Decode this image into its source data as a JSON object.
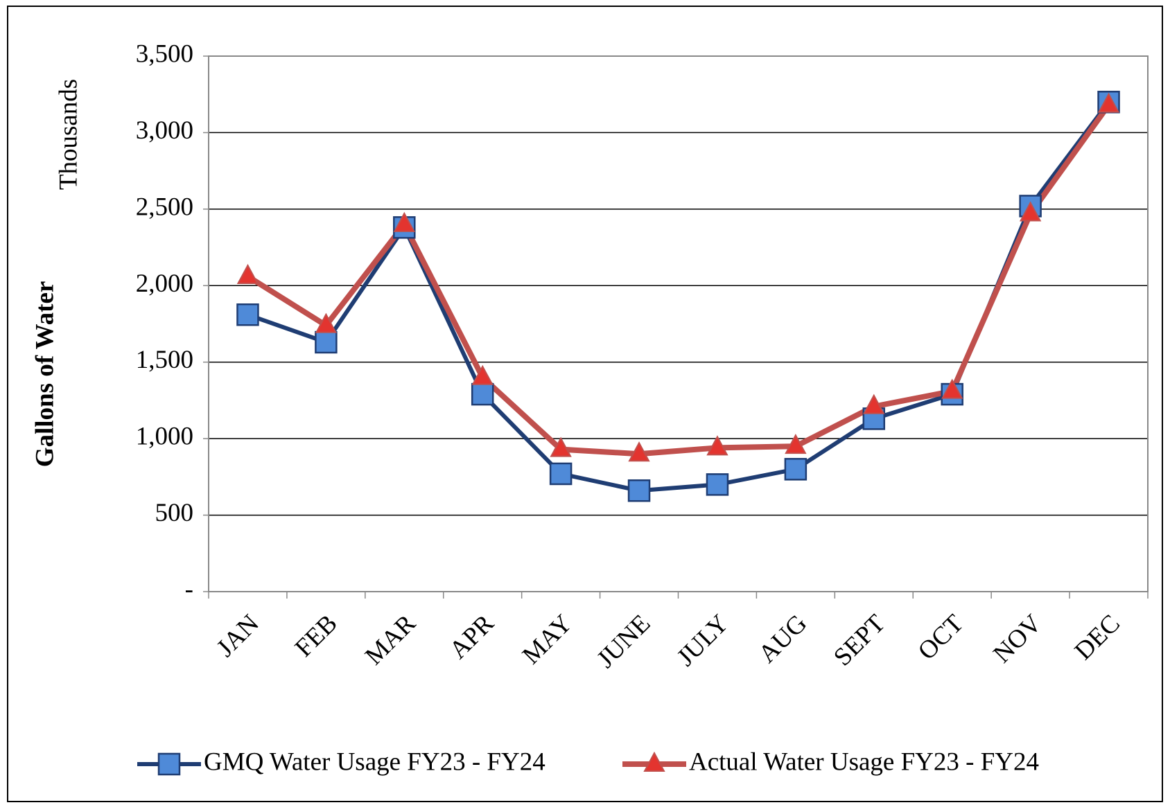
{
  "chart_data": {
    "type": "line",
    "y_axis_label": "Gallons of Water",
    "y_axis_unit": "Thousands",
    "categories": [
      "JAN",
      "FEB",
      "MAR",
      "APR",
      "MAY",
      "JUNE",
      "JULY",
      "AUG",
      "SEPT",
      "OCT",
      "NOV",
      "DEC"
    ],
    "series": [
      {
        "name": "GMQ Water Usage FY23 - FY24",
        "color": "#1f3d73",
        "marker": "square",
        "marker_color": "#4f8ad8",
        "values": [
          1810,
          1630,
          2380,
          1290,
          770,
          660,
          700,
          800,
          1130,
          1290,
          2520,
          3200
        ]
      },
      {
        "name": "Actual Water Usage FY23 - FY24",
        "color": "#c0504d",
        "marker": "triangle",
        "marker_color": "#e3342f",
        "values": [
          2060,
          1740,
          2400,
          1400,
          930,
          900,
          940,
          950,
          1210,
          1310,
          2470,
          3180
        ]
      }
    ],
    "ylim": [
      0,
      3500
    ],
    "yticks": [
      {
        "value": 0,
        "label": "-"
      },
      500,
      {
        "value": 1000,
        "label": "1,000"
      },
      {
        "value": 1500,
        "label": "1,500"
      },
      {
        "value": 2000,
        "label": "2,000"
      },
      {
        "value": 2500,
        "label": "2,500"
      },
      {
        "value": 3000,
        "label": "3,000"
      },
      {
        "value": 3500,
        "label": "3,500"
      }
    ],
    "grid": true,
    "legend": "bottom"
  }
}
